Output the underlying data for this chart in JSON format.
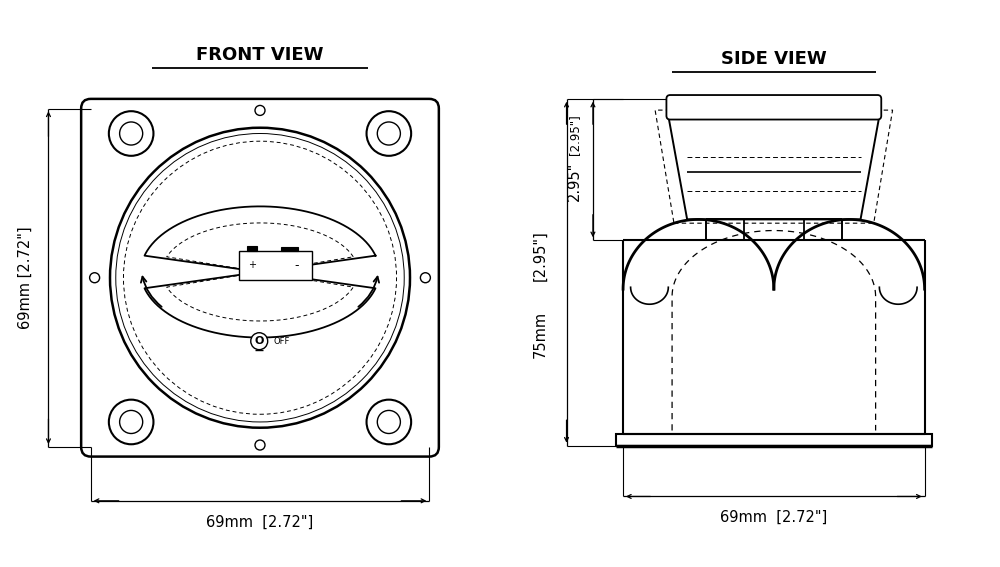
{
  "bg_color": "#ffffff",
  "line_color": "#000000",
  "title_front": "FRONT VIEW",
  "title_side": "SIDE VIEW",
  "dim_front_h": "69mm [2.72\"]",
  "dim_front_w": "69mm  [2.72\"]",
  "dim_side_h75": "75mm [2.95\"]",
  "dim_side_h295": "[2.95\"]",
  "dim_side_w": "69mm  [2.72\"]",
  "font_size_title": 13,
  "font_size_dim": 10.5
}
